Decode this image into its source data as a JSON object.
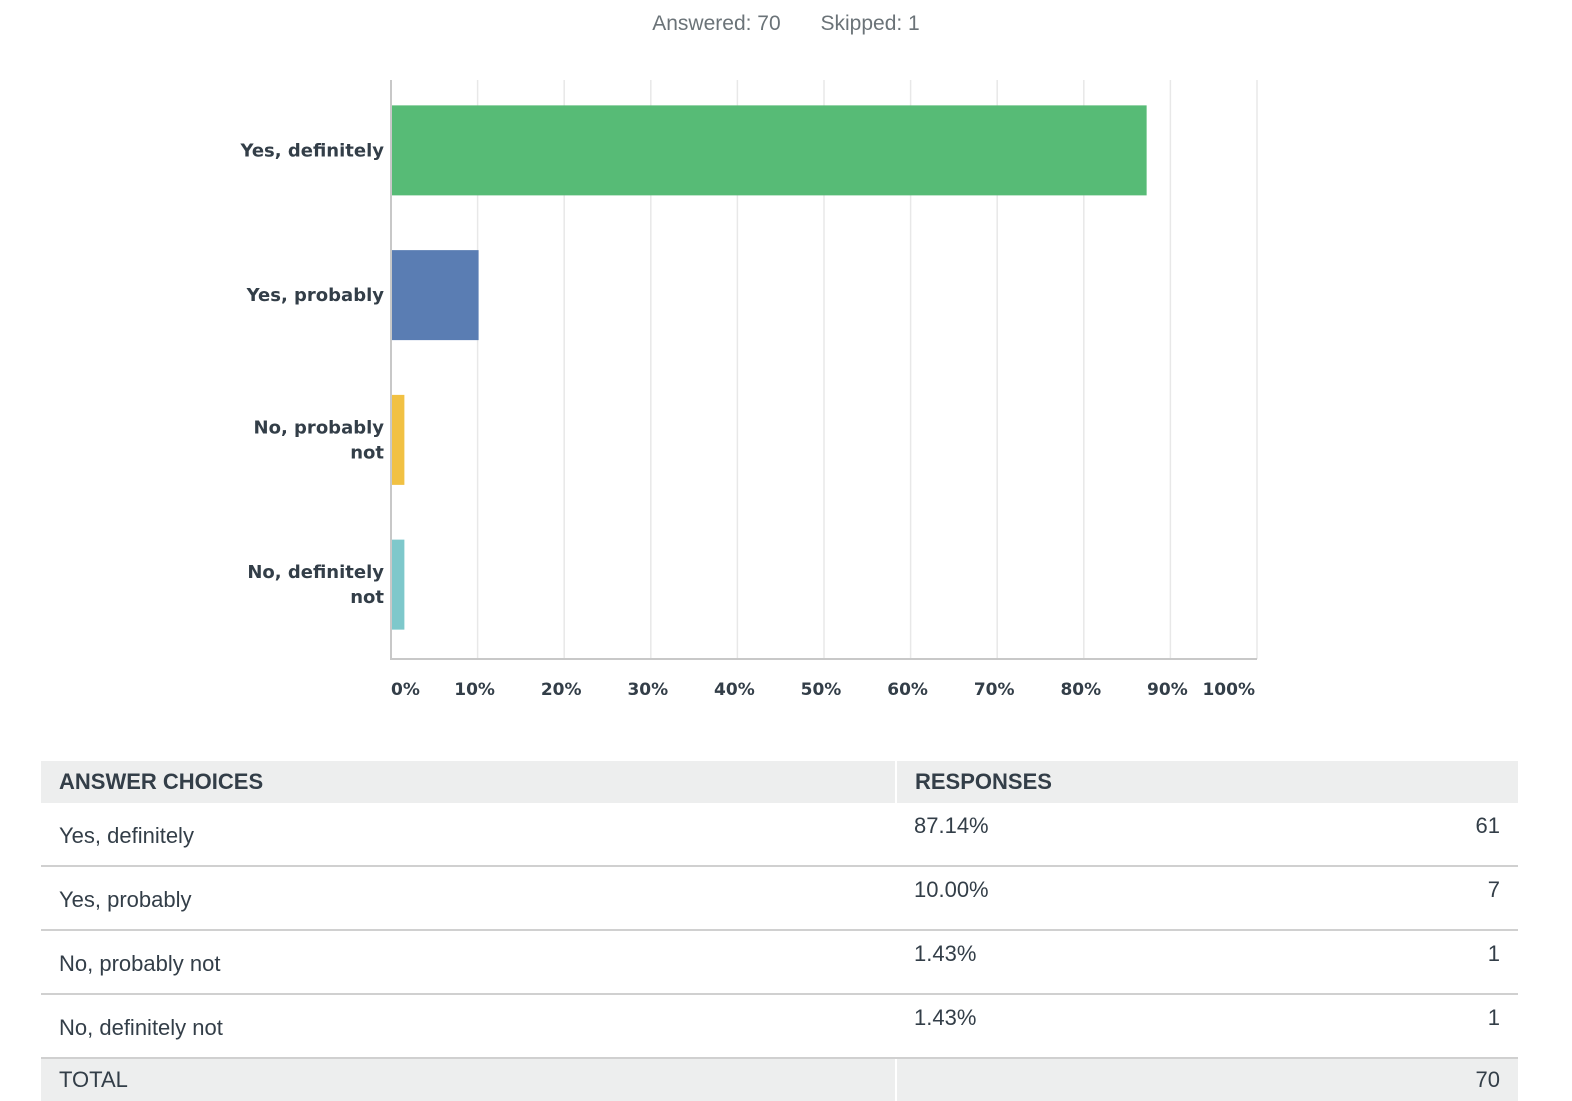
{
  "summary": {
    "answered": "Answered: 70",
    "skipped": "Skipped: 1"
  },
  "chart_data": {
    "type": "bar",
    "orientation": "horizontal",
    "categories": [
      [
        "Yes, definitely"
      ],
      [
        "Yes, probably"
      ],
      [
        "No, probably",
        "not"
      ],
      [
        "No, definitely",
        "not"
      ]
    ],
    "values": [
      87.14,
      10.0,
      1.43,
      1.43
    ],
    "colors": [
      "#57bb76",
      "#5a7db3",
      "#f1c143",
      "#7ec8cb"
    ],
    "xlim": [
      0,
      100
    ],
    "xticks": [
      "0%",
      "10%",
      "20%",
      "30%",
      "40%",
      "50%",
      "60%",
      "70%",
      "80%",
      "90%",
      "100%"
    ],
    "grid": true
  },
  "table": {
    "headers": [
      "ANSWER CHOICES",
      "RESPONSES"
    ],
    "rows": [
      {
        "choice": "Yes, definitely",
        "percent": "87.14%",
        "count": "61"
      },
      {
        "choice": "Yes, probably",
        "percent": "10.00%",
        "count": "7"
      },
      {
        "choice": "No, probably not",
        "percent": "1.43%",
        "count": "1"
      },
      {
        "choice": "No, definitely not",
        "percent": "1.43%",
        "count": "1"
      }
    ],
    "total_label": "TOTAL",
    "total_count": "70"
  }
}
